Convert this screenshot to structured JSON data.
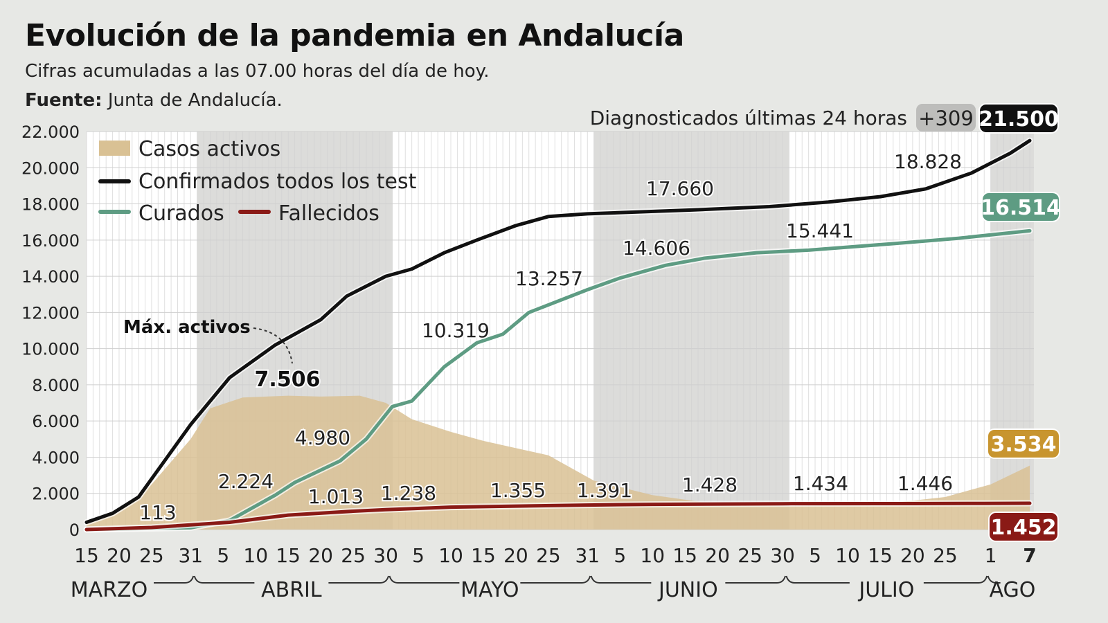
{
  "title": "Evolución de la pandemia en Andalucía",
  "subtitle": "Cifras acumuladas a las 07.00 horas del día de hoy.",
  "source_label": "Fuente:",
  "source": "Junta de Andalucía.",
  "chart_data": {
    "type": "line",
    "xlim": [
      "2020-03-15",
      "2020-08-07"
    ],
    "ylim": [
      0,
      22000
    ],
    "yticks": [
      0,
      2000,
      4000,
      6000,
      8000,
      10000,
      12000,
      14000,
      16000,
      18000,
      20000,
      22000
    ],
    "ytick_labels": [
      "0",
      "2.000",
      "4.000",
      "6.000",
      "8.000",
      "10.000",
      "12.000",
      "14.000",
      "16.000",
      "18.000",
      "20.000",
      "22.000"
    ],
    "xticks": [
      [
        "2020-03-15",
        "15"
      ],
      [
        "2020-03-20",
        "20"
      ],
      [
        "2020-03-25",
        "25"
      ],
      [
        "2020-03-31",
        "31"
      ],
      [
        "2020-04-05",
        "5"
      ],
      [
        "2020-04-10",
        "10"
      ],
      [
        "2020-04-15",
        "15"
      ],
      [
        "2020-04-20",
        "20"
      ],
      [
        "2020-04-25",
        "25"
      ],
      [
        "2020-04-30",
        "30"
      ],
      [
        "2020-05-05",
        "5"
      ],
      [
        "2020-05-10",
        "10"
      ],
      [
        "2020-05-15",
        "15"
      ],
      [
        "2020-05-20",
        "20"
      ],
      [
        "2020-05-25",
        "25"
      ],
      [
        "2020-05-31",
        "31"
      ],
      [
        "2020-06-05",
        "5"
      ],
      [
        "2020-06-10",
        "10"
      ],
      [
        "2020-06-15",
        "15"
      ],
      [
        "2020-06-20",
        "20"
      ],
      [
        "2020-06-25",
        "25"
      ],
      [
        "2020-06-30",
        "30"
      ],
      [
        "2020-07-05",
        "5"
      ],
      [
        "2020-07-10",
        "10"
      ],
      [
        "2020-07-15",
        "15"
      ],
      [
        "2020-07-20",
        "20"
      ],
      [
        "2020-07-25",
        "25"
      ],
      [
        "2020-08-01",
        "1"
      ],
      [
        "2020-08-07",
        "7"
      ]
    ],
    "months": [
      "MARZO",
      "ABRIL",
      "MAYO",
      "JUNIO",
      "JULIO",
      "AGO"
    ],
    "grid": true,
    "legend_position": "top-left",
    "series": [
      {
        "name": "Casos activos",
        "kind": "area",
        "color": "#d9c194",
        "points": [
          [
            "2020-03-15",
            300
          ],
          [
            "2020-03-20",
            1000
          ],
          [
            "2020-03-25",
            2500
          ],
          [
            "2020-03-31",
            5000
          ],
          [
            "2020-04-03",
            6700
          ],
          [
            "2020-04-08",
            7300
          ],
          [
            "2020-04-15",
            7400
          ],
          [
            "2020-04-20",
            7350
          ],
          [
            "2020-04-26",
            7400
          ],
          [
            "2020-04-30",
            7000
          ],
          [
            "2020-05-04",
            6100
          ],
          [
            "2020-05-10",
            5400
          ],
          [
            "2020-05-15",
            4900
          ],
          [
            "2020-05-25",
            4100
          ],
          [
            "2020-06-01",
            2700
          ],
          [
            "2020-06-10",
            1900
          ],
          [
            "2020-06-20",
            1400
          ],
          [
            "2020-07-01",
            1300
          ],
          [
            "2020-07-15",
            1400
          ],
          [
            "2020-07-25",
            1800
          ],
          [
            "2020-08-01",
            2500
          ],
          [
            "2020-08-07",
            3534
          ]
        ]
      },
      {
        "name": "Confirmados todos los test",
        "kind": "line",
        "color": "#111111",
        "points": [
          [
            "2020-03-15",
            400
          ],
          [
            "2020-03-19",
            900
          ],
          [
            "2020-03-23",
            1800
          ],
          [
            "2020-03-27",
            3800
          ],
          [
            "2020-03-31",
            5800
          ],
          [
            "2020-04-06",
            8400
          ],
          [
            "2020-04-13",
            10200
          ],
          [
            "2020-04-20",
            11600
          ],
          [
            "2020-04-24",
            12900
          ],
          [
            "2020-04-30",
            14000
          ],
          [
            "2020-05-04",
            14400
          ],
          [
            "2020-05-09",
            15300
          ],
          [
            "2020-05-14",
            16000
          ],
          [
            "2020-05-20",
            16800
          ],
          [
            "2020-05-25",
            17300
          ],
          [
            "2020-05-31",
            17450
          ],
          [
            "2020-06-16",
            17660
          ],
          [
            "2020-06-28",
            17850
          ],
          [
            "2020-07-07",
            18100
          ],
          [
            "2020-07-15",
            18400
          ],
          [
            "2020-07-22",
            18828
          ],
          [
            "2020-07-29",
            19700
          ],
          [
            "2020-08-04",
            20800
          ],
          [
            "2020-08-07",
            21500
          ]
        ]
      },
      {
        "name": "Curados",
        "kind": "line",
        "color": "#5e9c83",
        "points": [
          [
            "2020-03-15",
            0
          ],
          [
            "2020-03-31",
            100
          ],
          [
            "2020-04-06",
            500
          ],
          [
            "2020-04-13",
            1900
          ],
          [
            "2020-04-16",
            2600
          ],
          [
            "2020-04-23",
            3800
          ],
          [
            "2020-04-27",
            5000
          ],
          [
            "2020-05-01",
            6800
          ],
          [
            "2020-05-04",
            7100
          ],
          [
            "2020-05-09",
            9000
          ],
          [
            "2020-05-14",
            10319
          ],
          [
            "2020-05-18",
            10800
          ],
          [
            "2020-05-22",
            12000
          ],
          [
            "2020-05-31",
            13257
          ],
          [
            "2020-06-05",
            13900
          ],
          [
            "2020-06-12",
            14606
          ],
          [
            "2020-06-18",
            15000
          ],
          [
            "2020-06-26",
            15300
          ],
          [
            "2020-07-04",
            15441
          ],
          [
            "2020-07-17",
            15800
          ],
          [
            "2020-07-27",
            16100
          ],
          [
            "2020-08-07",
            16514
          ]
        ]
      },
      {
        "name": "Fallecidos",
        "kind": "line",
        "color": "#8a1a16",
        "points": [
          [
            "2020-03-15",
            0
          ],
          [
            "2020-03-25",
            113
          ],
          [
            "2020-04-06",
            400
          ],
          [
            "2020-04-15",
            800
          ],
          [
            "2020-04-25",
            1013
          ],
          [
            "2020-04-30",
            1100
          ],
          [
            "2020-05-10",
            1238
          ],
          [
            "2020-05-31",
            1355
          ],
          [
            "2020-06-10",
            1391
          ],
          [
            "2020-06-30",
            1428
          ],
          [
            "2020-07-20",
            1434
          ],
          [
            "2020-07-31",
            1446
          ],
          [
            "2020-08-07",
            1452
          ]
        ]
      }
    ],
    "annotations": [
      "113",
      "2.224",
      "1.013",
      "4.980",
      "1.238",
      "10.319",
      "1.355",
      "13.257",
      "1.391",
      "14.606",
      "17.660",
      "1.428",
      "15.441",
      "1.434",
      "18.828",
      "1.446"
    ],
    "max_active_label": "Máx. activos",
    "max_active_value": "7.506",
    "last24_label": "Diagnosticados últimas 24 horas",
    "last24_value": "+309",
    "end_badges": [
      {
        "text": "21.500",
        "color": "#111111"
      },
      {
        "text": "16.514",
        "color": "#5e9c83"
      },
      {
        "text": "3.534",
        "color": "#c8952f"
      },
      {
        "text": "1.452",
        "color": "#8a1a16"
      }
    ]
  }
}
